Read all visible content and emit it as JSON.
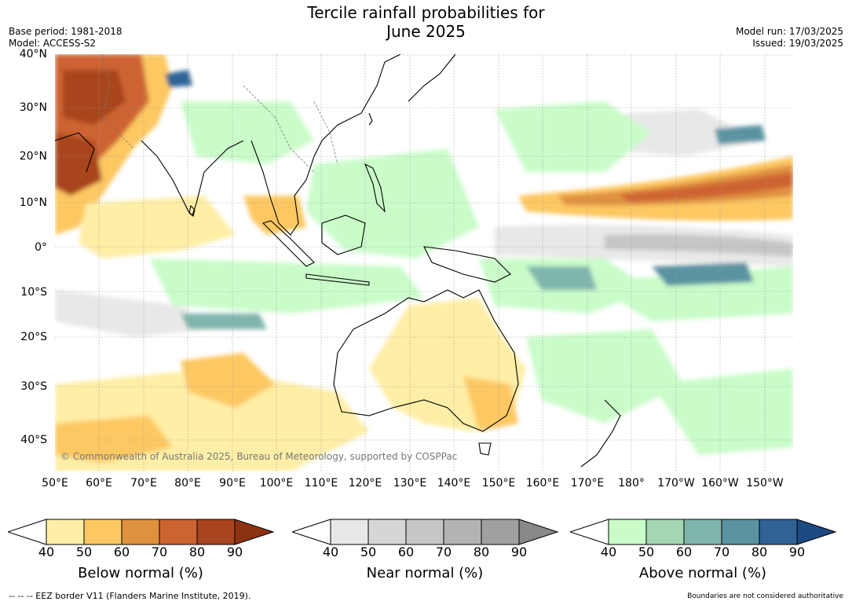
{
  "header": {
    "title_line1": "Tercile rainfall probabilities for",
    "title_line2": "June 2025",
    "base_period": "Base period: 1981-2018",
    "model": "Model: ACCESS-S2",
    "model_run": "Model run: 17/03/2025",
    "issued": "Issued: 19/03/2025"
  },
  "map": {
    "lat_labels": [
      "40°N",
      "30°N",
      "20°N",
      "10°N",
      "0°",
      "10°S",
      "20°S",
      "30°S",
      "40°S"
    ],
    "lon_labels": [
      "50°E",
      "60°E",
      "70°E",
      "80°E",
      "90°E",
      "100°E",
      "110°E",
      "120°E",
      "130°E",
      "140°E",
      "150°E",
      "160°E",
      "170°E",
      "180°",
      "170°W",
      "160°W",
      "150°W"
    ],
    "copyright": "© Commonwealth of Australia 2025, Bureau of Meteorology, supported by COSPPac",
    "colors": {
      "below": [
        "#ffeea6",
        "#fdc862",
        "#e0913f",
        "#cd6330",
        "#a8441f",
        "#8c3212"
      ],
      "near": [
        "#e8e8e8",
        "#d6d6d6",
        "#c6c6c6",
        "#b3b3b3",
        "#a0a0a0",
        "#888888"
      ],
      "above": [
        "#c9fcc9",
        "#a3d6b5",
        "#7fb5ad",
        "#5b93a1",
        "#2f6395",
        "#1b4a85"
      ]
    }
  },
  "colorbars": [
    {
      "label": "Below normal (%)",
      "ticks": [
        "40",
        "50",
        "60",
        "70",
        "80",
        "90"
      ]
    },
    {
      "label": "Near normal (%)",
      "ticks": [
        "40",
        "50",
        "60",
        "70",
        "80",
        "90"
      ]
    },
    {
      "label": "Above normal (%)",
      "ticks": [
        "40",
        "50",
        "60",
        "70",
        "80",
        "90"
      ]
    }
  ],
  "footer": {
    "eez": "--  --  -- EEZ border V11 (Flanders Marine Institute, 2019).",
    "disclaimer": "Boundaries are not considered authoritative"
  }
}
